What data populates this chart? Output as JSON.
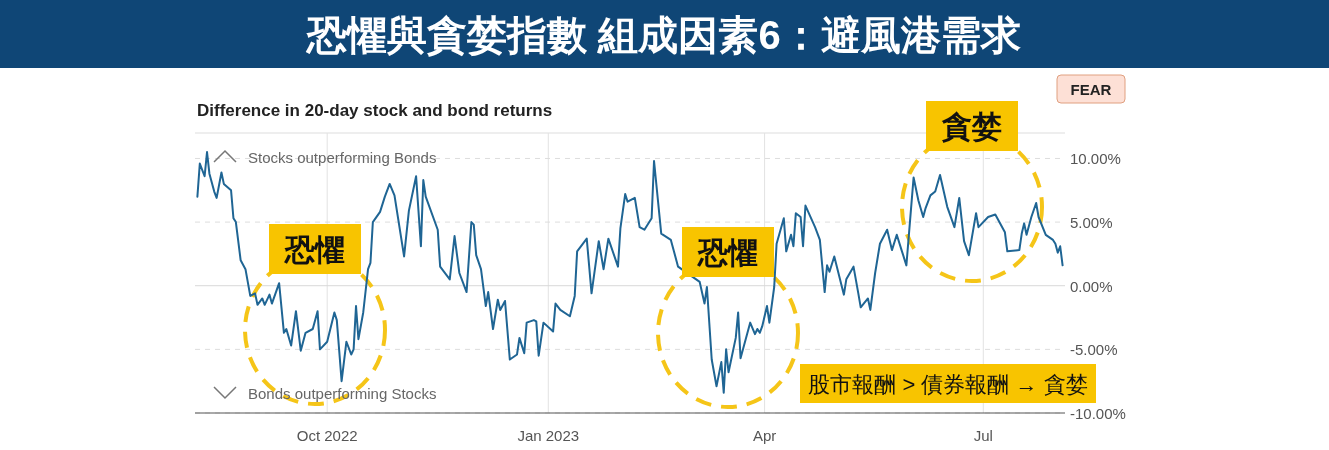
{
  "chart_data": {
    "type": "line",
    "title": "恐懼與貪婪指數 組成因素6：避風港需求",
    "subtitle": "Difference in 20-day stock and bond returns",
    "annotations": [
      "Stocks outperforming Bonds",
      "Bonds outperforming Stocks",
      "FEAR",
      "恐懼",
      "恐懼",
      "貪婪",
      "股市報酬 > 債券報酬 → 貪婪"
    ],
    "x": [
      "2022-08-08",
      "2022-08-09",
      "2022-08-11",
      "2022-08-12",
      "2022-08-13",
      "2022-08-15",
      "2022-08-16",
      "2022-08-18",
      "2022-08-19",
      "2022-08-22",
      "2022-08-23",
      "2022-08-24",
      "2022-08-26",
      "2022-08-28",
      "2022-08-30",
      "2022-09-01",
      "2022-09-02",
      "2022-09-04",
      "2022-09-05",
      "2022-09-07",
      "2022-09-08",
      "2022-09-11",
      "2022-09-13",
      "2022-09-14",
      "2022-09-16",
      "2022-09-18",
      "2022-09-20",
      "2022-09-22",
      "2022-09-25",
      "2022-09-27",
      "2022-09-28",
      "2022-10-01",
      "2022-10-04",
      "2022-10-05",
      "2022-10-07",
      "2022-10-09",
      "2022-10-11",
      "2022-10-12",
      "2022-10-13",
      "2022-10-14",
      "2022-10-16",
      "2022-10-18",
      "2022-10-19",
      "2022-10-20",
      "2022-10-23",
      "2022-10-25",
      "2022-10-27",
      "2022-10-29",
      "2022-11-02",
      "2022-11-04",
      "2022-11-07",
      "2022-11-09",
      "2022-11-10",
      "2022-11-11",
      "2022-11-16",
      "2022-11-17",
      "2022-11-21",
      "2022-11-23",
      "2022-11-25",
      "2022-11-28",
      "2022-11-30",
      "2022-12-01",
      "2022-12-02",
      "2022-12-04",
      "2022-12-06",
      "2022-12-07",
      "2022-12-09",
      "2022-12-11",
      "2022-12-12",
      "2022-12-14",
      "2022-12-16",
      "2022-12-19",
      "2022-12-20",
      "2022-12-22",
      "2022-12-23",
      "2022-12-26",
      "2022-12-27",
      "2022-12-28",
      "2022-12-30",
      "2023-01-03",
      "2023-01-04",
      "2023-01-06",
      "2023-01-10",
      "2023-01-12",
      "2023-01-13",
      "2023-01-17",
      "2023-01-19",
      "2023-01-22",
      "2023-01-24",
      "2023-01-26",
      "2023-01-30",
      "2023-01-31",
      "2023-02-02",
      "2023-02-03",
      "2023-02-06",
      "2023-02-08",
      "2023-02-10",
      "2023-02-13",
      "2023-02-14",
      "2023-02-17",
      "2023-02-21",
      "2023-02-24",
      "2023-03-05",
      "2023-03-07",
      "2023-03-08",
      "2023-03-10",
      "2023-03-12",
      "2023-03-14",
      "2023-03-15",
      "2023-03-16",
      "2023-03-17",
      "2023-03-20",
      "2023-03-21",
      "2023-03-22",
      "2023-03-26",
      "2023-03-28",
      "2023-03-29",
      "2023-03-30",
      "2023-03-31",
      "2023-04-02",
      "2023-04-03",
      "2023-04-05",
      "2023-04-06",
      "2023-04-09",
      "2023-04-10",
      "2023-04-12",
      "2023-04-13",
      "2023-04-14",
      "2023-04-16",
      "2023-04-17",
      "2023-04-18",
      "2023-04-22",
      "2023-04-24",
      "2023-04-26",
      "2023-04-27",
      "2023-04-28",
      "2023-04-30",
      "2023-05-04",
      "2023-05-05",
      "2023-05-08",
      "2023-05-10",
      "2023-05-11",
      "2023-05-14",
      "2023-05-15",
      "2023-05-17",
      "2023-05-19",
      "2023-05-22",
      "2023-05-24",
      "2023-05-26",
      "2023-05-28",
      "2023-05-30",
      "2023-06-02",
      "2023-06-04",
      "2023-06-06",
      "2023-06-07",
      "2023-06-09",
      "2023-06-11",
      "2023-06-13",
      "2023-06-16",
      "2023-06-19",
      "2023-06-21",
      "2023-06-23",
      "2023-06-25",
      "2023-06-27",
      "2023-06-28",
      "2023-06-29",
      "2023-07-03",
      "2023-07-06",
      "2023-07-10",
      "2023-07-11",
      "2023-07-16",
      "2023-07-17",
      "2023-07-18",
      "2023-07-19",
      "2023-07-21",
      "2023-07-23",
      "2023-07-24",
      "2023-07-27",
      "2023-07-30",
      "2023-07-31",
      "2023-08-01",
      "2023-08-02",
      "2023-08-03"
    ],
    "series": [
      {
        "color": "#1f6594",
        "values": [
          7.0,
          9.6,
          8.6,
          10.5,
          8.8,
          7.4,
          6.9,
          8.9,
          8.0,
          7.5,
          5.3,
          5.0,
          2.0,
          1.3,
          -0.8,
          -0.6,
          -1.5,
          -1.0,
          -1.5,
          -0.7,
          -1.4,
          0.2,
          -3.7,
          -3.4,
          -4.7,
          -2.0,
          -5.1,
          -3.7,
          -3.4,
          -2.0,
          -5.0,
          -4.4,
          -2.1,
          -2.7,
          -7.5,
          -4.4,
          -5.4,
          -5.0,
          -1.6,
          -4.2,
          -2.1,
          1.3,
          1.8,
          5.0,
          5.8,
          7.0,
          8.0,
          7.1,
          2.3,
          5.9,
          8.6,
          3.1,
          8.3,
          7.0,
          4.4,
          1.5,
          0.5,
          3.9,
          1.0,
          -0.5,
          5.0,
          4.8,
          2.4,
          1.3,
          -1.6,
          -0.5,
          -3.4,
          -1.1,
          -1.9,
          -1.2,
          -5.8,
          -5.4,
          -4.1,
          -5.3,
          -2.9,
          -2.7,
          -2.8,
          -5.5,
          -2.9,
          -3.6,
          -1.4,
          -1.9,
          -2.4,
          -0.8,
          2.7,
          3.7,
          -0.6,
          3.5,
          1.3,
          3.7,
          1.5,
          4.5,
          7.2,
          6.6,
          6.9,
          4.6,
          4.4,
          5.3,
          9.8,
          4.1,
          3.6,
          1.5,
          0.3,
          -1.4,
          -0.1,
          -5.8,
          -7.9,
          -6.0,
          -8.4,
          -5.0,
          -6.8,
          -4.1,
          -2.1,
          -5.7,
          -2.9,
          -3.8,
          -3.4,
          -3.7,
          -3.2,
          -1.6,
          -2.9,
          -0.1,
          3.3,
          5.3,
          2.7,
          4.0,
          3.1,
          5.7,
          5.4,
          3.1,
          6.3,
          4.6,
          3.6,
          -0.5,
          1.6,
          1.1,
          2.3,
          -0.7,
          0.5,
          1.5,
          -0.6,
          -1.7,
          -1.0,
          -1.9,
          1.0,
          3.3,
          4.4,
          2.8,
          4.0,
          2.8,
          1.6,
          8.5,
          6.7,
          5.4,
          6.1,
          7.1,
          7.4,
          8.7,
          6.2,
          4.6,
          6.9,
          3.5,
          2.4,
          4.6,
          5.7,
          4.6,
          5.4,
          5.6,
          4.2,
          2.7,
          2.8,
          4.1,
          4.9,
          4.0,
          5.4,
          6.5,
          5.4,
          4.0,
          3.6,
          3.3,
          2.6,
          3.1,
          1.6
        ]
      }
    ],
    "xlim": [
      "2022-08-07",
      "2023-08-04"
    ],
    "ylim": [
      -10,
      12
    ],
    "xticks": [
      {
        "value": "2022-10-01",
        "label": "Oct 2022"
      },
      {
        "value": "2023-01-01",
        "label": "Jan 2023"
      },
      {
        "value": "2023-04-01",
        "label": "Apr"
      },
      {
        "value": "2023-07-01",
        "label": "Jul"
      }
    ],
    "yticks": [
      {
        "value": -10,
        "label": "-10.00%"
      },
      {
        "value": -5,
        "label": "-5.00%"
      },
      {
        "value": 0,
        "label": "0.00%"
      },
      {
        "value": 5,
        "label": "5.00%"
      },
      {
        "value": 10,
        "label": "10.00%"
      }
    ],
    "grid": true
  }
}
